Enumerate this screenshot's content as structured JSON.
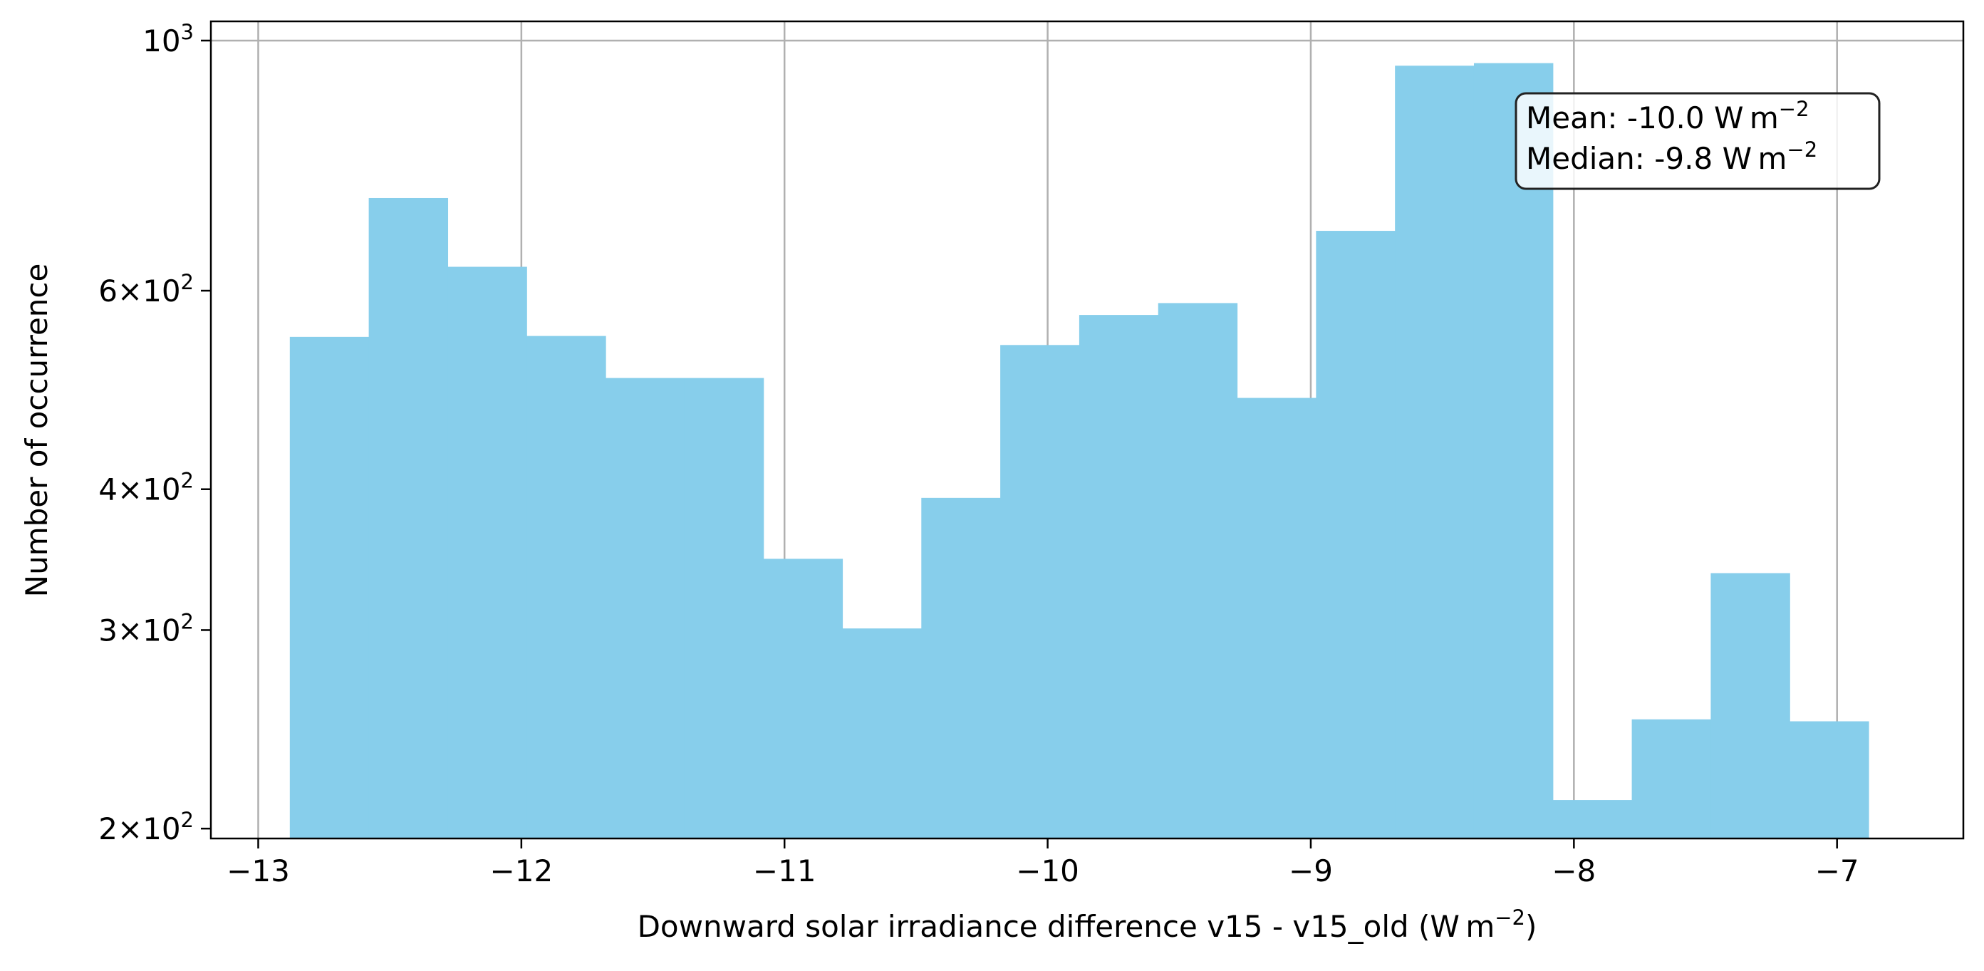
{
  "chart_data": {
    "type": "bar",
    "subtype": "histogram",
    "title": "",
    "xlabel": {
      "main": "Downward solar irradiance difference v15 - v15_old (W m",
      "sup": "−2",
      "close": ")"
    },
    "ylabel": "Number of occurrence",
    "xlim": [
      -13.18,
      -6.52
    ],
    "ylim": [
      196,
      1040
    ],
    "yscale": "log",
    "grid": "vertical and top gridlines",
    "bar_color": "#87CEEB",
    "x_ticks": [
      {
        "value": -13,
        "label": "−13"
      },
      {
        "value": -12,
        "label": "−12"
      },
      {
        "value": -11,
        "label": "−11"
      },
      {
        "value": -10,
        "label": "−10"
      },
      {
        "value": -9,
        "label": "−9"
      },
      {
        "value": -8,
        "label": "−8"
      },
      {
        "value": -7,
        "label": "−7"
      }
    ],
    "y_ticks": [
      {
        "value": 200,
        "mant": "2×10",
        "exp": "2"
      },
      {
        "value": 300,
        "mant": "3×10",
        "exp": "2"
      },
      {
        "value": 400,
        "mant": "4×10",
        "exp": "2"
      },
      {
        "value": 600,
        "mant": "6×10",
        "exp": "2"
      },
      {
        "value": 1000,
        "mant": "10",
        "exp": "3"
      }
    ],
    "bins": [
      {
        "x0": -12.88,
        "x1": -12.58,
        "count": 546
      },
      {
        "x0": -12.58,
        "x1": -12.28,
        "count": 725
      },
      {
        "x0": -12.28,
        "x1": -11.98,
        "count": 630
      },
      {
        "x0": -11.98,
        "x1": -11.68,
        "count": 547
      },
      {
        "x0": -11.68,
        "x1": -11.38,
        "count": 502
      },
      {
        "x0": -11.38,
        "x1": -11.08,
        "count": 502
      },
      {
        "x0": -11.08,
        "x1": -10.78,
        "count": 347
      },
      {
        "x0": -10.78,
        "x1": -10.48,
        "count": 301
      },
      {
        "x0": -10.48,
        "x1": -10.18,
        "count": 393
      },
      {
        "x0": -10.18,
        "x1": -9.88,
        "count": 537
      },
      {
        "x0": -9.88,
        "x1": -9.58,
        "count": 571
      },
      {
        "x0": -9.58,
        "x1": -9.28,
        "count": 585
      },
      {
        "x0": -9.28,
        "x1": -8.98,
        "count": 482
      },
      {
        "x0": -8.98,
        "x1": -8.68,
        "count": 678
      },
      {
        "x0": -8.68,
        "x1": -8.38,
        "count": 950
      },
      {
        "x0": -8.38,
        "x1": -8.08,
        "count": 955
      },
      {
        "x0": -8.08,
        "x1": -7.78,
        "count": 212
      },
      {
        "x0": -7.78,
        "x1": -7.48,
        "count": 250
      },
      {
        "x0": -7.48,
        "x1": -7.18,
        "count": 337
      },
      {
        "x0": -7.18,
        "x1": -6.88,
        "count": 249
      }
    ],
    "stats_box": {
      "mean_label": "Mean: -10.0 W m",
      "median_label": "Median: -9.8 W m",
      "unit_sup": "−2",
      "position": "top-right"
    }
  }
}
